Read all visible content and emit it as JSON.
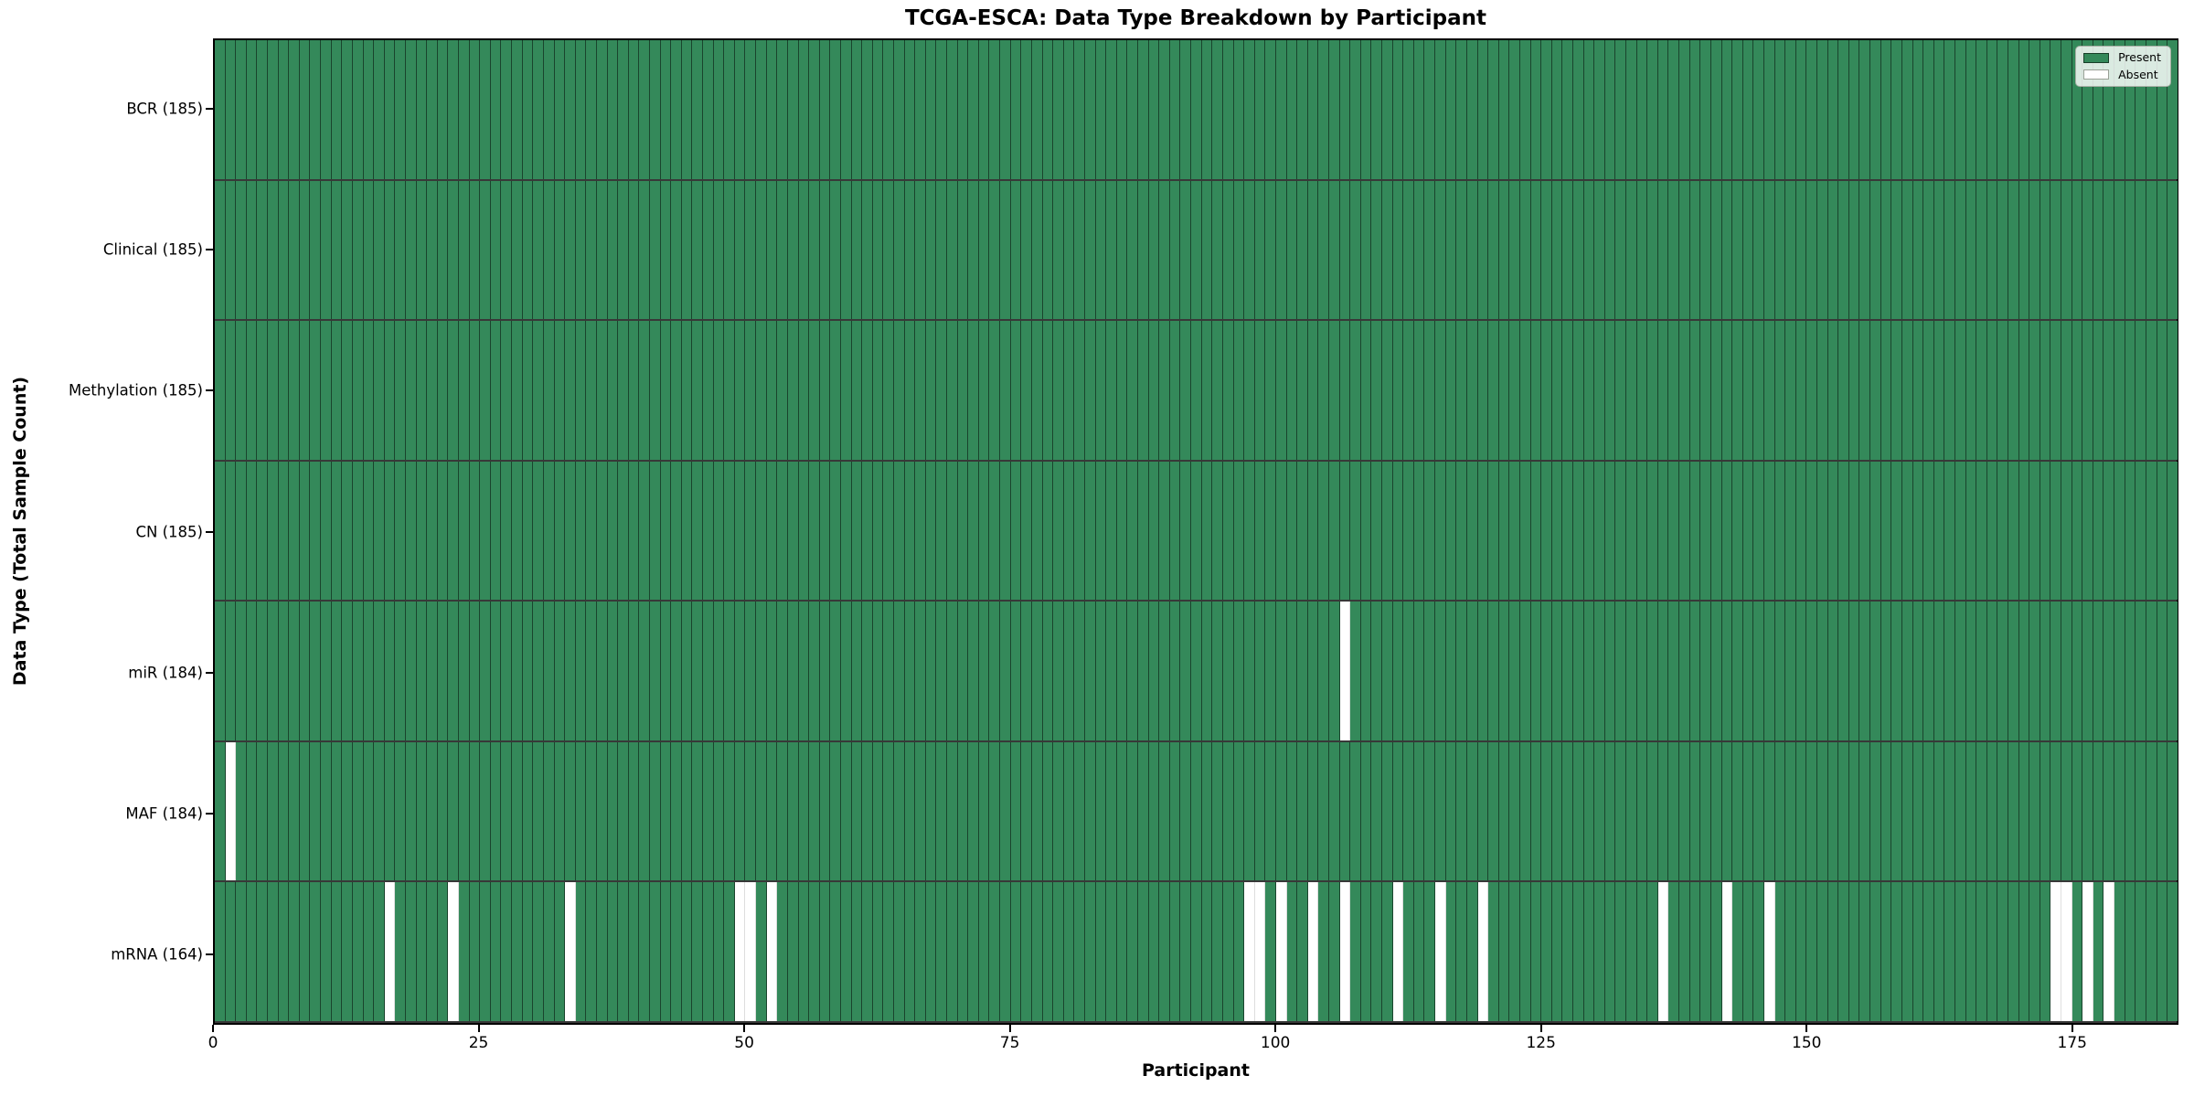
{
  "chart_data": {
    "type": "heatmap",
    "title": "TCGA-ESCA: Data Type Breakdown by Participant",
    "xlabel": "Participant",
    "ylabel": "Data Type (Total Sample Count)",
    "n_participants": 185,
    "x_ticks": [
      0,
      25,
      50,
      75,
      100,
      125,
      150,
      175
    ],
    "x_range": [
      0,
      185
    ],
    "grid": false,
    "legend": {
      "position": "upper right",
      "present_label": "Present",
      "absent_label": "Absent"
    },
    "colors": {
      "present": "#34895a",
      "absent": "#ffffff"
    },
    "rows": [
      {
        "label": "BCR (185)",
        "data_type": "BCR",
        "total_count": 185,
        "absent_participants": []
      },
      {
        "label": "Clinical (185)",
        "data_type": "Clinical",
        "total_count": 185,
        "absent_participants": []
      },
      {
        "label": "Methylation (185)",
        "data_type": "Methylation",
        "total_count": 185,
        "absent_participants": []
      },
      {
        "label": "CN (185)",
        "data_type": "CN",
        "total_count": 185,
        "absent_participants": []
      },
      {
        "label": "miR (184)",
        "data_type": "miR",
        "total_count": 184,
        "absent_participants": [
          106
        ]
      },
      {
        "label": "MAF (184)",
        "data_type": "MAF",
        "total_count": 184,
        "absent_participants": [
          1
        ]
      },
      {
        "label": "mRNA (164)",
        "data_type": "mRNA",
        "total_count": 164,
        "absent_participants": [
          16,
          22,
          33,
          49,
          50,
          52,
          97,
          98,
          100,
          103,
          106,
          111,
          115,
          119,
          136,
          142,
          146,
          173,
          174,
          176,
          178
        ]
      }
    ]
  }
}
